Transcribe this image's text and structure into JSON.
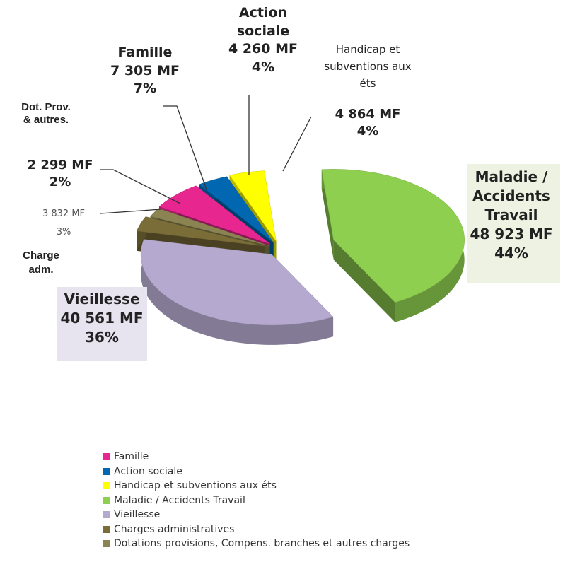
{
  "chart_data": {
    "type": "pie3d",
    "categories": [
      "Famille",
      "Action sociale",
      "Handicap et subventions aux éts",
      "Maladie / Accidents Travail",
      "Vieillesse",
      "Charges administratives",
      "Dotations provisions, Compens. branches et autres charges"
    ],
    "slice_labels": [
      "Famille",
      "Action sociale",
      "Handicap et subventions aux éts",
      "Maladie / Accidents Travail",
      "Vieillesse",
      "Charge adm.",
      "Dot. Prov. & autres."
    ],
    "values": [
      7305,
      4260,
      4864,
      48923,
      40561,
      3832,
      2299
    ],
    "value_labels": [
      "7 305 MF",
      "4 260 MF",
      "4 864 MF",
      "48 923 MF",
      "40 561 MF",
      "3 832 MF",
      "2 299 MF"
    ],
    "percent_labels": [
      "7%",
      "4%",
      "4%",
      "44%",
      "36%",
      "3%",
      "2%"
    ],
    "colors": [
      "#e8268f",
      "#0067b0",
      "#ffff00",
      "#8fcf50",
      "#b6a9cf",
      "#7a6d38",
      "#8b8452"
    ],
    "legend": "bottom"
  }
}
